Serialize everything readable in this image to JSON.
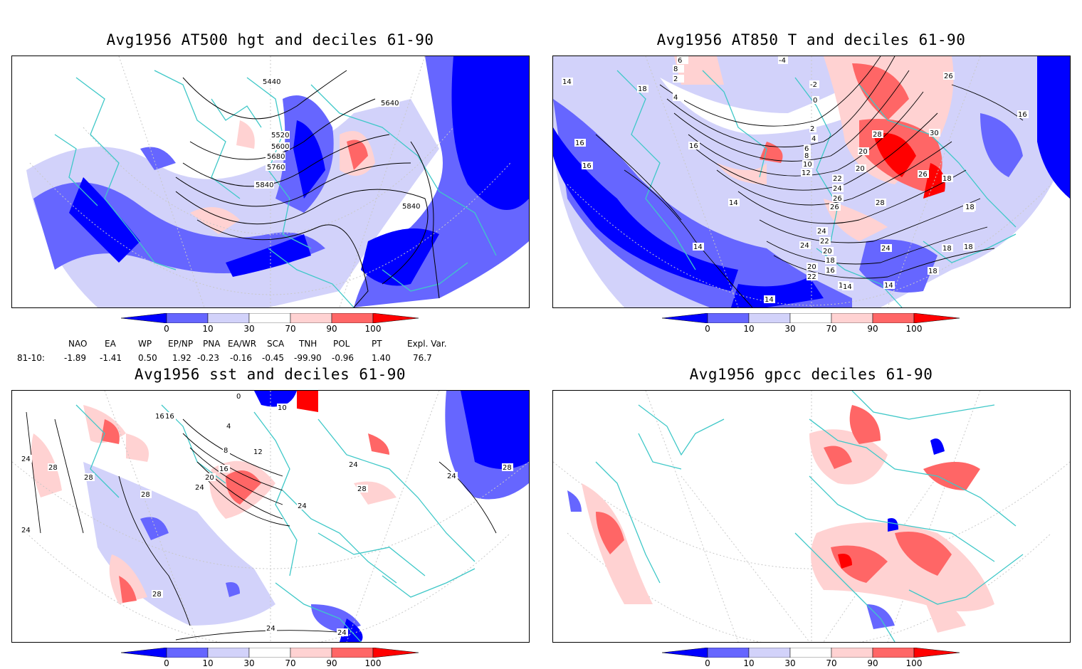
{
  "panels": [
    {
      "id": "hgt",
      "title": "Avg1956 AT500 hgt and deciles 61-90",
      "contour_labels": [
        "5440",
        "5520",
        "5600",
        "5680",
        "5760",
        "5840",
        "5640",
        "5840"
      ]
    },
    {
      "id": "t850",
      "title": "Avg1956 AT850 T and deciles 61-90",
      "contour_labels": [
        "14",
        "18",
        "16",
        "16",
        "14",
        "14",
        "14",
        "14",
        "16",
        "18",
        "20",
        "22",
        "24",
        "26",
        "28",
        "24",
        "22",
        "20",
        "18",
        "16",
        "14",
        "18",
        "12",
        "10",
        "8",
        "6",
        "4",
        "2",
        "0",
        "-2",
        "-4",
        "2",
        "4",
        "6",
        "8",
        "20",
        "22",
        "24",
        "26",
        "28",
        "30",
        "26",
        "18",
        "14",
        "16",
        "18",
        "24",
        "20",
        "26",
        "18",
        "16"
      ]
    },
    {
      "id": "sst",
      "title": "Avg1956 sst and deciles 61-90",
      "contour_labels": [
        "24",
        "28",
        "28",
        "28",
        "28",
        "24",
        "24",
        "24",
        "24",
        "24",
        "28",
        "24",
        "28",
        "16",
        "20",
        "24",
        "8",
        "12",
        "16",
        "4",
        "0",
        "10",
        "16"
      ]
    },
    {
      "id": "gpcc",
      "title": "Avg1956 gpcc deciles 61-90",
      "contour_labels": []
    }
  ],
  "colorbar": {
    "ticks": [
      "0",
      "10",
      "30",
      "70",
      "90",
      "100"
    ],
    "colors": {
      "deep_blue": "#0000ff",
      "mid_blue": "#6666ff",
      "light_blue": "#d2d2fa",
      "white": "#ffffff",
      "light_red": "#ffd2d2",
      "mid_red": "#ff6666",
      "deep_red": "#ff0000"
    }
  },
  "indices": {
    "headers": [
      "NAO",
      "EA",
      "WP",
      "EP/NP",
      "PNA",
      "EA/WR",
      "SCA",
      "TNH",
      "POL",
      "PT",
      "Expl. Var."
    ],
    "row_label": "81-10:",
    "values": [
      "-1.89",
      "-1.41",
      "0.50",
      "1.92",
      "-0.23",
      "-0.16",
      "-0.45",
      "-99.90",
      "-0.96",
      "1.40",
      "76.7"
    ]
  },
  "map_colors": {
    "coast": "#3fc8c8",
    "grid": "#c8c8c8",
    "contour": "#000000"
  }
}
